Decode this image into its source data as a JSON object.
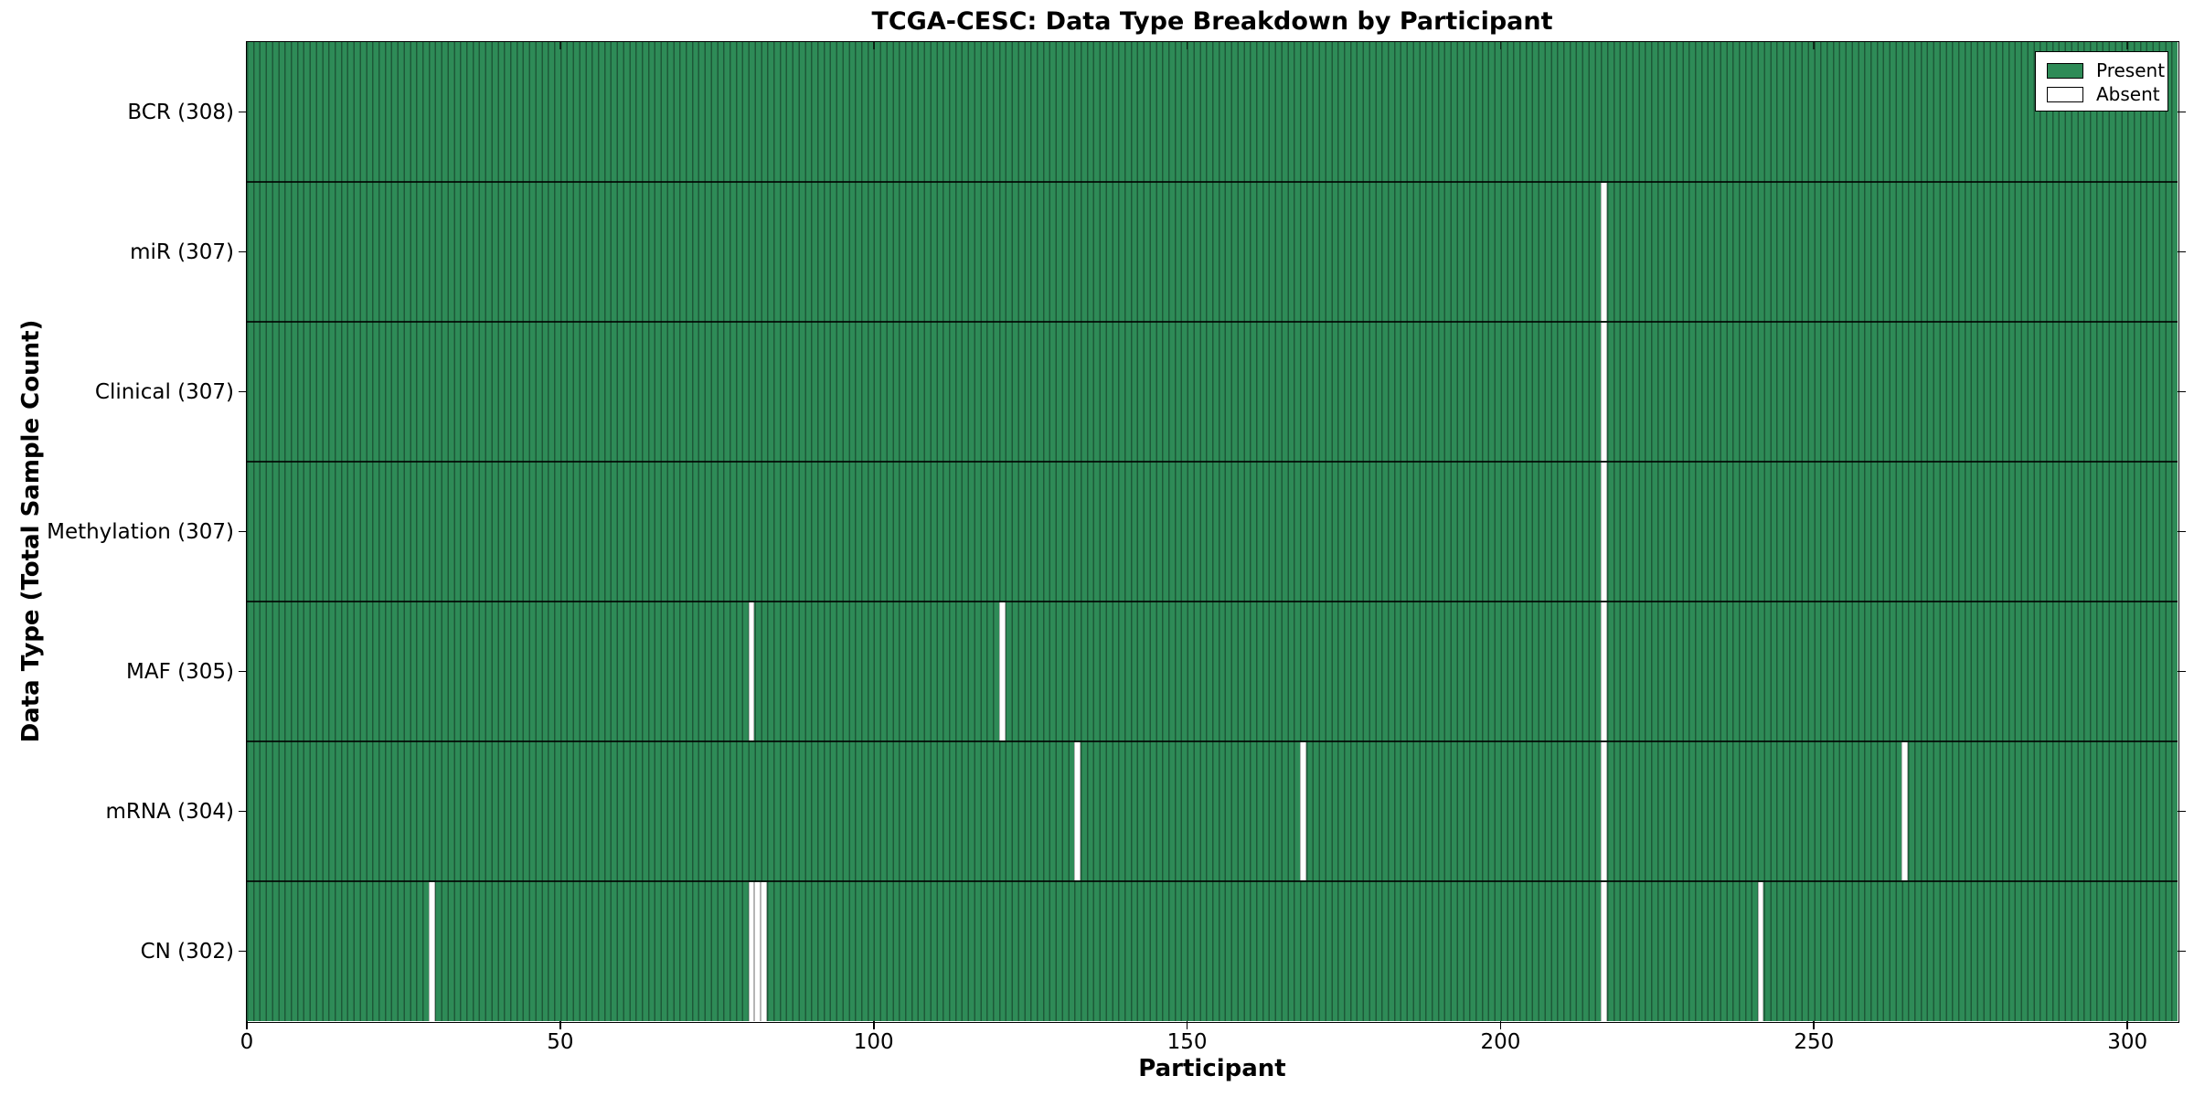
{
  "title": "TCGA-CESC: Data Type Breakdown by Participant",
  "axes": {
    "x_label": "Participant",
    "y_label": "Data Type (Total Sample Count)"
  },
  "legend": {
    "present_label": "Present",
    "absent_label": "Absent"
  },
  "colors": {
    "present_fill": "#2e8b57",
    "bar_edge": "#1d5938",
    "absent_fill": "#ffffff",
    "absent_edge": "#b5b5b5",
    "boundary_line": "rgba(0,0,0,0.8)",
    "spine": "#000000"
  },
  "chart_data": {
    "type": "heatmap",
    "title": "TCGA-CESC: Data Type Breakdown by Participant",
    "xlabel": "Participant",
    "ylabel": "Data Type (Total Sample Count)",
    "legend_entries": [
      {
        "label": "Present",
        "color": "#2e8b57"
      },
      {
        "label": "Absent",
        "color": "#ffffff"
      }
    ],
    "legend_position": "upper right",
    "grid": false,
    "n_participants": 308,
    "x_range": [
      0,
      308
    ],
    "x_ticks": [
      0,
      50,
      100,
      150,
      200,
      250,
      300
    ],
    "rows": [
      {
        "label": "BCR (308)",
        "data_type": "BCR",
        "total": 308,
        "absent_participants": []
      },
      {
        "label": "miR (307)",
        "data_type": "miR",
        "total": 307,
        "absent_participants": [
          216
        ]
      },
      {
        "label": "Clinical (307)",
        "data_type": "Clinical",
        "total": 307,
        "absent_participants": [
          216
        ]
      },
      {
        "label": "Methylation (307)",
        "data_type": "Methylation",
        "total": 307,
        "absent_participants": [
          216
        ]
      },
      {
        "label": "MAF (305)",
        "data_type": "MAF",
        "total": 305,
        "absent_participants": [
          80,
          120,
          216
        ]
      },
      {
        "label": "mRNA (304)",
        "data_type": "mRNA",
        "total": 304,
        "absent_participants": [
          132,
          168,
          216,
          264
        ]
      },
      {
        "label": "CN (302)",
        "data_type": "CN",
        "total": 302,
        "absent_participants": [
          29,
          80,
          81,
          82,
          216,
          241
        ]
      }
    ]
  }
}
